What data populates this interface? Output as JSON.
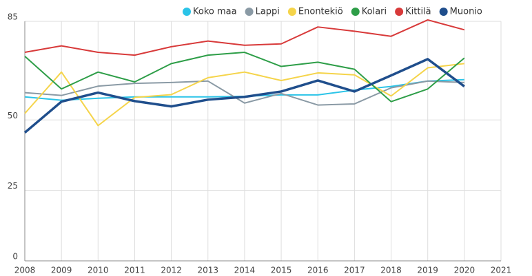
{
  "chart_data": {
    "type": "line",
    "x": [
      2008,
      2009,
      2010,
      2011,
      2012,
      2013,
      2014,
      2015,
      2016,
      2017,
      2018,
      2019,
      2020
    ],
    "series": [
      {
        "name": "Koko maa",
        "color": "#2bc4e8",
        "values": [
          58.2,
          57,
          57.7,
          58.2,
          58.2,
          58.2,
          58.4,
          58.9,
          58.9,
          60.6,
          61.9,
          63.8,
          64.3
        ]
      },
      {
        "name": "Lappi",
        "color": "#8a9aa5",
        "values": [
          59.7,
          58.7,
          62,
          63,
          63.3,
          63.8,
          56,
          59.4,
          55.3,
          55.7,
          61.4,
          63.8,
          63.3
        ]
      },
      {
        "name": "Enontekiö",
        "color": "#f5d44a",
        "values": [
          52.3,
          67,
          48,
          58,
          59,
          65,
          67,
          64,
          66.7,
          66,
          58.5,
          68.5,
          70
        ]
      },
      {
        "name": "Kolari",
        "color": "#2e9e48",
        "values": [
          72.6,
          61,
          67,
          63.5,
          70,
          73,
          74,
          69,
          70.5,
          68,
          56.5,
          61,
          72
        ]
      },
      {
        "name": "Kittilä",
        "color": "#d83a3a",
        "values": [
          74,
          76.3,
          74,
          73,
          76,
          78,
          76.5,
          77,
          83,
          81.5,
          79.7,
          85.5,
          82
        ]
      },
      {
        "name": "Muonio",
        "color": "#1f4e8c",
        "values": [
          45.5,
          56.5,
          59.7,
          56.7,
          54.8,
          57.2,
          58.2,
          60.1,
          64,
          60.1,
          65.8,
          71.6,
          61.9
        ]
      }
    ],
    "xlim": [
      2008,
      2021
    ],
    "xticks": [
      2008,
      2009,
      2010,
      2011,
      2012,
      2013,
      2014,
      2015,
      2016,
      2017,
      2018,
      2019,
      2020,
      2021
    ],
    "ylim": [
      0,
      85
    ],
    "yticks": [
      0,
      25,
      50,
      85
    ],
    "grid": true
  }
}
